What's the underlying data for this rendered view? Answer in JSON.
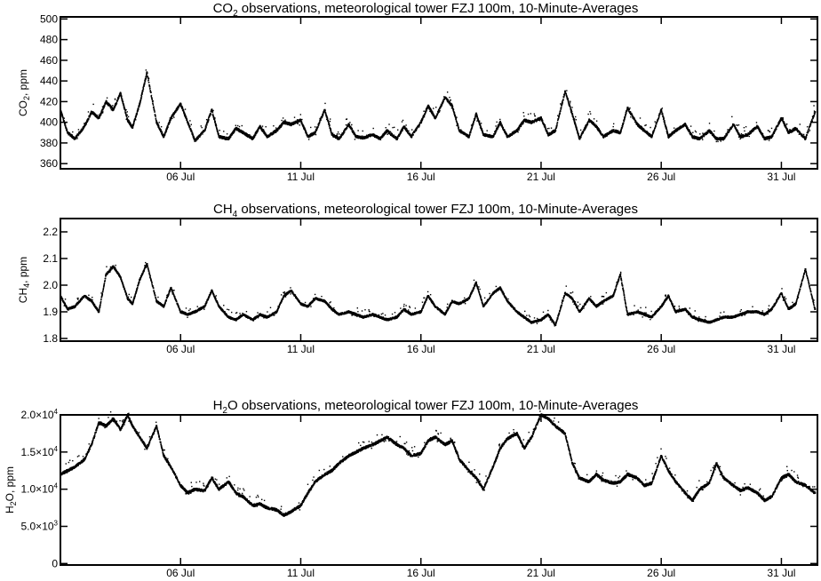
{
  "chart_data": [
    {
      "type": "scatter",
      "title": "CO2 observations, meteorological tower FZJ 100m, 10-Minute-Averages",
      "title_main": "CO",
      "title_sub": "2",
      "title_rest": " observations, meteorological tower FZJ 100m, 10-Minute-Averages",
      "ylabel_main": "CO",
      "ylabel_sub": "2",
      "ylabel_rest": ", ppm",
      "ylim": [
        355,
        502
      ],
      "yticks": [
        360,
        380,
        400,
        420,
        440,
        460,
        480,
        500
      ],
      "ytick_labels": [
        "360",
        "380",
        "400",
        "420",
        "440",
        "460",
        "480",
        "500"
      ],
      "xlim": [
        1.0,
        32.5
      ],
      "xticks": [
        6,
        11,
        16,
        21,
        26,
        31
      ],
      "xtick_labels": [
        "06 Jul",
        "11 Jul",
        "16 Jul",
        "21 Jul",
        "26 Jul",
        "31 Jul"
      ],
      "grid": false,
      "marker_color": "#000000",
      "series": [
        {
          "x": [
            1.0,
            1.3,
            1.6,
            2.0,
            2.3,
            2.6,
            2.9,
            3.2,
            3.5,
            3.8,
            4.0,
            4.3,
            4.6,
            5.0,
            5.3,
            5.6,
            6.0,
            6.3,
            6.6,
            7.0,
            7.3,
            7.6,
            8.0,
            8.3,
            8.6,
            9.0,
            9.3,
            9.6,
            10.0,
            10.3,
            10.6,
            11.0,
            11.3,
            11.6,
            12.0,
            12.3,
            12.6,
            13.0,
            13.3,
            13.6,
            14.0,
            14.3,
            14.6,
            15.0,
            15.3,
            15.6,
            16.0,
            16.3,
            16.6,
            17.0,
            17.3,
            17.6,
            18.0,
            18.3,
            18.6,
            19.0,
            19.3,
            19.6,
            20.0,
            20.3,
            20.6,
            21.0,
            21.3,
            21.6,
            22.0,
            22.3,
            22.6,
            23.0,
            23.3,
            23.6,
            24.0,
            24.3,
            24.6,
            25.0,
            25.3,
            25.6,
            26.0,
            26.3,
            26.6,
            27.0,
            27.3,
            27.6,
            28.0,
            28.3,
            28.6,
            29.0,
            29.3,
            29.6,
            30.0,
            30.3,
            30.6,
            31.0,
            31.3,
            31.6,
            32.0,
            32.4
          ],
          "y": [
            412,
            390,
            384,
            396,
            410,
            404,
            420,
            412,
            428,
            402,
            395,
            418,
            448,
            400,
            386,
            404,
            418,
            400,
            382,
            392,
            412,
            386,
            384,
            394,
            390,
            384,
            396,
            386,
            392,
            400,
            398,
            402,
            386,
            390,
            412,
            388,
            384,
            398,
            386,
            385,
            388,
            384,
            392,
            384,
            396,
            386,
            400,
            416,
            404,
            424,
            416,
            392,
            386,
            408,
            388,
            386,
            400,
            386,
            392,
            402,
            400,
            404,
            388,
            392,
            430,
            408,
            384,
            402,
            396,
            386,
            392,
            390,
            414,
            398,
            392,
            386,
            412,
            386,
            392,
            398,
            386,
            384,
            392,
            384,
            384,
            398,
            386,
            388,
            396,
            384,
            386,
            404,
            390,
            394,
            384,
            410
          ]
        }
      ]
    },
    {
      "type": "scatter",
      "title": "CH4 observations, meteorological tower FZJ 100m, 10-Minute-Averages",
      "title_main": "CH",
      "title_sub": "4",
      "title_rest": " observations, meteorological tower FZJ 100m, 10-Minute-Averages",
      "ylabel_main": "CH",
      "ylabel_sub": "4",
      "ylabel_rest": ", ppm",
      "ylim": [
        1.79,
        2.25
      ],
      "yticks": [
        1.8,
        1.9,
        2.0,
        2.1,
        2.2
      ],
      "ytick_labels": [
        "1.8",
        "1.9",
        "2.0",
        "2.1",
        "2.2"
      ],
      "xlim": [
        1.0,
        32.5
      ],
      "xticks": [
        6,
        11,
        16,
        21,
        26,
        31
      ],
      "xtick_labels": [
        "06 Jul",
        "11 Jul",
        "16 Jul",
        "21 Jul",
        "26 Jul",
        "31 Jul"
      ],
      "grid": false,
      "marker_color": "#000000",
      "series": [
        {
          "x": [
            1.0,
            1.3,
            1.6,
            2.0,
            2.3,
            2.6,
            2.9,
            3.2,
            3.5,
            3.8,
            4.0,
            4.3,
            4.6,
            5.0,
            5.3,
            5.6,
            6.0,
            6.3,
            6.6,
            7.0,
            7.3,
            7.6,
            8.0,
            8.3,
            8.6,
            9.0,
            9.3,
            9.6,
            10.0,
            10.3,
            10.6,
            11.0,
            11.3,
            11.6,
            12.0,
            12.3,
            12.6,
            13.0,
            13.3,
            13.6,
            14.0,
            14.3,
            14.6,
            15.0,
            15.3,
            15.6,
            16.0,
            16.3,
            16.6,
            17.0,
            17.3,
            17.6,
            18.0,
            18.3,
            18.6,
            19.0,
            19.3,
            19.6,
            20.0,
            20.3,
            20.6,
            21.0,
            21.3,
            21.6,
            22.0,
            22.3,
            22.6,
            23.0,
            23.3,
            23.6,
            24.0,
            24.3,
            24.6,
            25.0,
            25.3,
            25.6,
            26.0,
            26.3,
            26.6,
            27.0,
            27.3,
            27.6,
            28.0,
            28.3,
            28.6,
            29.0,
            29.3,
            29.6,
            30.0,
            30.3,
            30.6,
            31.0,
            31.3,
            31.6,
            32.0,
            32.4
          ],
          "y": [
            1.96,
            1.91,
            1.92,
            1.96,
            1.94,
            1.9,
            2.04,
            2.07,
            2.03,
            1.95,
            1.93,
            2.02,
            2.08,
            1.94,
            1.92,
            1.99,
            1.9,
            1.89,
            1.9,
            1.92,
            1.98,
            1.92,
            1.88,
            1.87,
            1.89,
            1.87,
            1.89,
            1.88,
            1.9,
            1.96,
            1.98,
            1.93,
            1.92,
            1.95,
            1.94,
            1.91,
            1.89,
            1.9,
            1.89,
            1.88,
            1.89,
            1.88,
            1.87,
            1.88,
            1.91,
            1.89,
            1.9,
            1.96,
            1.92,
            1.89,
            1.94,
            1.93,
            1.95,
            2.01,
            1.92,
            1.97,
            1.99,
            1.94,
            1.9,
            1.88,
            1.86,
            1.87,
            1.89,
            1.85,
            1.97,
            1.95,
            1.9,
            1.95,
            1.92,
            1.94,
            1.96,
            2.04,
            1.89,
            1.9,
            1.89,
            1.88,
            1.92,
            1.96,
            1.9,
            1.91,
            1.88,
            1.87,
            1.86,
            1.87,
            1.88,
            1.88,
            1.89,
            1.9,
            1.9,
            1.89,
            1.91,
            1.97,
            1.91,
            1.93,
            2.06,
            1.91
          ]
        }
      ]
    },
    {
      "type": "scatter",
      "title": "H2O observations, meteorological tower FZJ 100m, 10-Minute-Averages",
      "title_main": "H",
      "title_sub": "2",
      "title_rest": "O observations, meteorological tower FZJ 100m, 10-Minute-Averages",
      "ylabel_main": "H",
      "ylabel_sub": "2",
      "ylabel_rest": "O, ppm",
      "ylim": [
        -200,
        20000
      ],
      "yticks": [
        0,
        5000,
        10000,
        15000,
        20000
      ],
      "ytick_labels": [
        {
          "mant": "0",
          "exp": ""
        },
        {
          "mant": "5.0×10",
          "exp": "3"
        },
        {
          "mant": "1.0×10",
          "exp": "4"
        },
        {
          "mant": "1.5×10",
          "exp": "4"
        },
        {
          "mant": "2.0×10",
          "exp": "4"
        }
      ],
      "xlim": [
        1.0,
        32.5
      ],
      "xticks": [
        6,
        11,
        16,
        21,
        26,
        31
      ],
      "xtick_labels": [
        "06 Jul",
        "11 Jul",
        "16 Jul",
        "21 Jul",
        "26 Jul",
        "31 Jul"
      ],
      "grid": false,
      "marker_color": "#000000",
      "series": [
        {
          "x": [
            1.0,
            1.3,
            1.6,
            2.0,
            2.3,
            2.6,
            2.9,
            3.2,
            3.5,
            3.8,
            4.0,
            4.3,
            4.6,
            5.0,
            5.3,
            5.6,
            6.0,
            6.3,
            6.6,
            7.0,
            7.3,
            7.6,
            8.0,
            8.3,
            8.6,
            9.0,
            9.3,
            9.6,
            10.0,
            10.3,
            10.6,
            11.0,
            11.3,
            11.6,
            12.0,
            12.3,
            12.6,
            13.0,
            13.3,
            13.6,
            14.0,
            14.3,
            14.6,
            15.0,
            15.3,
            15.6,
            16.0,
            16.3,
            16.6,
            17.0,
            17.3,
            17.6,
            18.0,
            18.3,
            18.6,
            19.0,
            19.3,
            19.6,
            20.0,
            20.3,
            20.6,
            21.0,
            21.3,
            21.6,
            22.0,
            22.3,
            22.6,
            23.0,
            23.3,
            23.6,
            24.0,
            24.3,
            24.6,
            25.0,
            25.3,
            25.6,
            26.0,
            26.3,
            26.6,
            27.0,
            27.3,
            27.6,
            28.0,
            28.3,
            28.6,
            29.0,
            29.3,
            29.6,
            30.0,
            30.3,
            30.6,
            31.0,
            31.3,
            31.6,
            32.0,
            32.4
          ],
          "y": [
            12000,
            12500,
            13000,
            14000,
            16000,
            19000,
            18500,
            19500,
            18000,
            20000,
            18500,
            17000,
            15500,
            18500,
            14500,
            13000,
            10500,
            9500,
            10000,
            9800,
            11500,
            10000,
            11000,
            9500,
            9000,
            7800,
            8000,
            7500,
            7200,
            6500,
            7000,
            7800,
            9500,
            11000,
            12000,
            12500,
            13500,
            14500,
            15000,
            15500,
            16000,
            16500,
            17000,
            16000,
            15500,
            14500,
            14800,
            16500,
            17000,
            16000,
            16500,
            14000,
            12500,
            11500,
            10000,
            13000,
            15500,
            16800,
            17500,
            15500,
            17000,
            20000,
            19500,
            18500,
            17500,
            13500,
            11500,
            11000,
            12000,
            11200,
            10800,
            11000,
            12000,
            11500,
            10500,
            10800,
            14500,
            12500,
            11000,
            9500,
            8500,
            10000,
            10800,
            13500,
            11500,
            10500,
            9800,
            10200,
            9500,
            8500,
            9000,
            11500,
            12000,
            11000,
            10500,
            9500
          ]
        }
      ]
    }
  ]
}
